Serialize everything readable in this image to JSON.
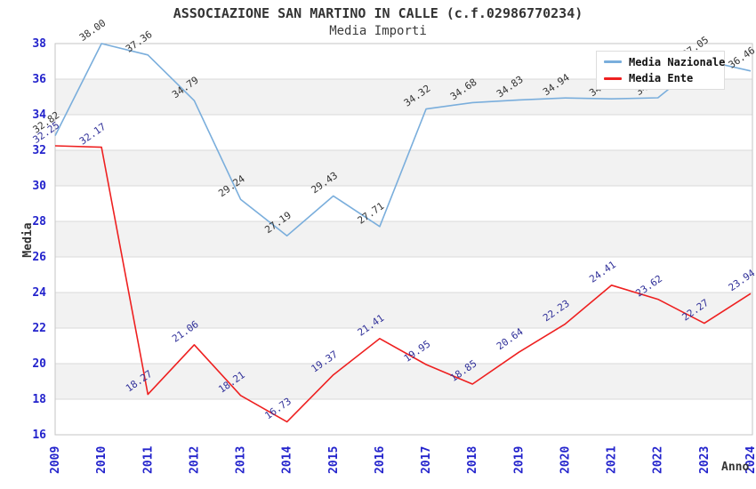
{
  "header": {
    "title": "ASSOCIAZIONE SAN MARTINO IN CALLE (c.f.02986770234)",
    "subtitle": "Media Importi"
  },
  "legend": {
    "position": "top-right",
    "items": [
      {
        "label": "Media Nazionale",
        "color": "#7aaedc"
      },
      {
        "label": "Media Ente",
        "color": "#ee2020"
      }
    ]
  },
  "axes": {
    "y_title": "Media",
    "x_title": "Anno",
    "y_ticks": [
      16,
      18,
      20,
      22,
      24,
      26,
      28,
      30,
      32,
      34,
      36,
      38
    ],
    "gray_bands_start": [
      18,
      22,
      26,
      30,
      34
    ],
    "tick_color": "#2323cc"
  },
  "theme": {
    "band": "#f2f2f2",
    "grid": "#d9d9d9",
    "border": "#c6c6c6",
    "title_color": "#333333"
  },
  "chart_data": {
    "type": "line",
    "title": "ASSOCIAZIONE SAN MARTINO IN CALLE (c.f.02986770234)",
    "subtitle": "Media Importi",
    "xlabel": "Anno",
    "ylabel": "Media",
    "ylim": [
      16,
      38
    ],
    "grid": "horizontal",
    "legend_position": "top-right",
    "x": [
      2009,
      2010,
      2011,
      2012,
      2013,
      2014,
      2015,
      2016,
      2017,
      2018,
      2019,
      2020,
      2021,
      2022,
      2023,
      2024
    ],
    "series": [
      {
        "name": "Media Nazionale",
        "color": "#7aaedc",
        "label_color": "#333333",
        "values": [
          32.82,
          38.0,
          37.36,
          34.79,
          29.24,
          27.19,
          29.43,
          27.71,
          34.32,
          34.68,
          34.83,
          34.94,
          34.89,
          34.95,
          37.05,
          36.46
        ]
      },
      {
        "name": "Media Ente",
        "color": "#ee2020",
        "label_color": "#303099",
        "values": [
          32.25,
          32.17,
          18.27,
          21.06,
          18.21,
          16.73,
          19.37,
          21.41,
          19.95,
          18.85,
          20.64,
          22.23,
          24.41,
          23.62,
          22.27,
          23.94
        ]
      }
    ]
  }
}
